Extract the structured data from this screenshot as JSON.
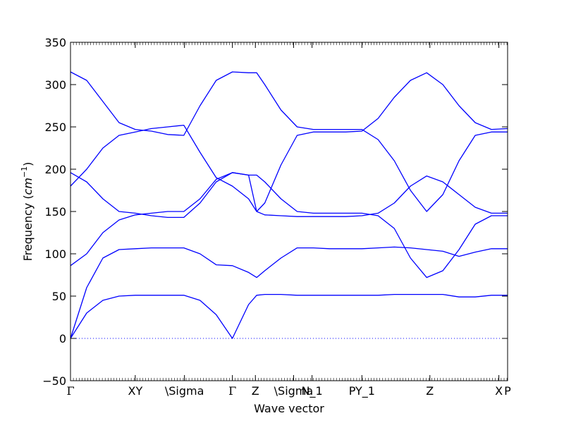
{
  "chart_data": {
    "type": "line",
    "title": "",
    "xlabel": "Wave vector",
    "ylabel": "Frequency (",
    "ylabel_math": "cm",
    "ylabel_exp": "−1",
    "ylabel_close": ")",
    "ylim": [
      -50,
      350
    ],
    "yticks": [
      -50,
      0,
      50,
      100,
      150,
      200,
      250,
      300,
      350
    ],
    "grid": false,
    "legend": "none",
    "line_color": "#0000ff",
    "zero_line": {
      "y": 0,
      "style": "dotted",
      "color": "#0000ff"
    },
    "x_ticks": [
      {
        "x": 0.0,
        "label": "Γ",
        "serif": true
      },
      {
        "x": 0.4,
        "label": "XY",
        "serif": false
      },
      {
        "x": 0.704,
        "label": "\\Sigma",
        "serif": false
      },
      {
        "x": 1.0,
        "label": "Γ",
        "serif": true
      },
      {
        "x": 1.142,
        "label": "Z",
        "serif": false
      },
      {
        "x": 1.378,
        "label": "\\Sigma",
        "serif": false
      },
      {
        "x": 1.492,
        "label": "N_1",
        "serif": false
      },
      {
        "x": 1.8,
        "label": "PY_1",
        "serif": false
      },
      {
        "x": 2.22,
        "label": "Z",
        "serif": false
      },
      {
        "x": 2.646,
        "label": "X",
        "serif": false
      },
      {
        "x": 2.7,
        "label": "P",
        "serif": false
      }
    ],
    "x": [
      0,
      0.1,
      0.2,
      0.3,
      0.4,
      0.5,
      0.6,
      0.7,
      0.8,
      0.9,
      1.0,
      1.1,
      1.15,
      1.2,
      1.3,
      1.4,
      1.5,
      1.6,
      1.7,
      1.8,
      1.9,
      2.0,
      2.1,
      2.2,
      2.3,
      2.4,
      2.5,
      2.6,
      2.7
    ],
    "series": [
      {
        "values": [
          0,
          30,
          45,
          50,
          51,
          51,
          51,
          51,
          45,
          28,
          0,
          40,
          51,
          52,
          52,
          51,
          51,
          51,
          51,
          51,
          51,
          52,
          52,
          52,
          52,
          49,
          49,
          51,
          51
        ]
      },
      {
        "values": [
          0,
          60,
          95,
          105,
          106,
          107,
          107,
          107,
          100,
          87,
          86,
          78,
          72,
          80,
          95,
          107,
          107,
          106,
          106,
          106,
          107,
          108,
          107,
          105,
          103,
          97,
          102,
          106,
          106
        ]
      },
      {
        "values": [
          86,
          100,
          125,
          140,
          146,
          148,
          150,
          150,
          165,
          188,
          196,
          193,
          150,
          146,
          145,
          144,
          144,
          144,
          144,
          145,
          148,
          160,
          180,
          192,
          185,
          170,
          155,
          148,
          148
        ]
      },
      {
        "values": [
          196,
          185,
          165,
          150,
          148,
          145,
          143,
          143,
          160,
          185,
          196,
          193,
          193,
          185,
          165,
          150,
          148,
          148,
          148,
          148,
          145,
          130,
          95,
          72,
          80,
          105,
          135,
          145,
          145
        ]
      },
      {
        "values": [
          180,
          200,
          225,
          240,
          244,
          248,
          250,
          252,
          220,
          190,
          180,
          165,
          150,
          160,
          205,
          240,
          244,
          244,
          244,
          245,
          260,
          285,
          305,
          314,
          300,
          275,
          255,
          247,
          248
        ]
      },
      {
        "values": [
          315,
          305,
          280,
          255,
          247,
          245,
          241,
          240,
          275,
          305,
          315,
          314,
          314,
          300,
          270,
          250,
          247,
          247,
          247,
          247,
          235,
          210,
          175,
          150,
          170,
          210,
          240,
          244,
          244
        ]
      }
    ]
  }
}
